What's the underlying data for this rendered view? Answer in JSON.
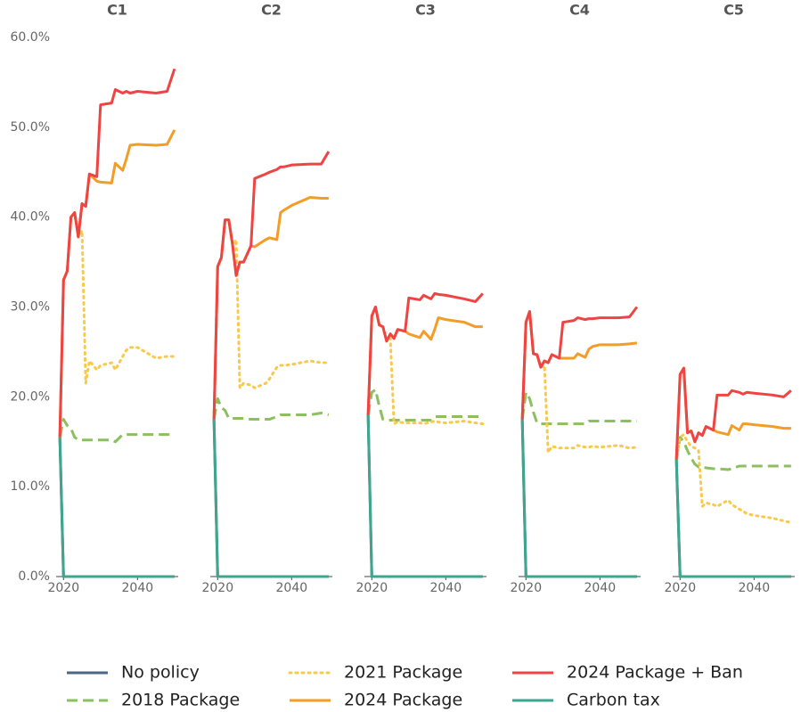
{
  "chart_data": [
    {
      "type": "line",
      "title": "C1",
      "xlim": [
        2018,
        2051
      ],
      "xticks": [
        2020,
        2040
      ],
      "ylim": [
        0,
        60
      ],
      "yticks": [
        {
          "value": 0,
          "label": "0.0%"
        },
        {
          "value": 10,
          "label": "10.0%"
        },
        {
          "value": 20,
          "label": "20.0%"
        },
        {
          "value": 30,
          "label": "30.0%"
        },
        {
          "value": 40,
          "label": "40.0%"
        },
        {
          "value": 50,
          "label": "50.0%"
        },
        {
          "value": 60,
          "label": "60.0%"
        }
      ],
      "x": [
        2019,
        2020,
        2021,
        2022,
        2023,
        2024,
        2025,
        2026,
        2027,
        2029,
        2030,
        2033,
        2034,
        2036,
        2037,
        2038,
        2040,
        2045,
        2048,
        2050
      ],
      "series": [
        {
          "name": "No policy",
          "color": "#4a6785",
          "style": "solid",
          "values": [
            15.5,
            0,
            0,
            0,
            0,
            0,
            0,
            0,
            0,
            0,
            0,
            0,
            0,
            0,
            0,
            0,
            0,
            0,
            0,
            0
          ]
        },
        {
          "name": "2018 Package",
          "color": "#8cbf5f",
          "style": "dashed",
          "values": [
            15.5,
            17.5,
            16.8,
            16.5,
            15.5,
            15.2,
            15.2,
            15.2,
            15.2,
            15.2,
            15.2,
            15.2,
            15.0,
            15.8,
            15.8,
            15.8,
            15.8,
            15.8,
            15.8,
            15.8
          ]
        },
        {
          "name": "2021 Package",
          "color": "#f8c94a",
          "style": "dotted",
          "values": [
            15.5,
            33,
            34,
            40,
            40.5,
            37.8,
            38.5,
            21.5,
            24,
            23,
            23.5,
            23.8,
            23,
            24.5,
            25.2,
            25.5,
            25.5,
            24.3,
            24.5,
            24.5
          ]
        },
        {
          "name": "2024 Package",
          "color": "#f39c26",
          "style": "solid",
          "values": [
            15.5,
            33,
            34,
            40,
            40.5,
            37.8,
            41.5,
            41.2,
            44.8,
            44,
            43.9,
            43.8,
            46,
            45.2,
            46.5,
            48,
            48.1,
            48,
            48.1,
            49.7
          ]
        },
        {
          "name": "2024 Package + Ban",
          "color": "#ef4444",
          "style": "solid",
          "values": [
            15.5,
            33,
            34,
            40,
            40.5,
            37.8,
            41.5,
            41.2,
            44.8,
            44.5,
            52.5,
            52.7,
            54.2,
            53.8,
            54,
            53.8,
            54,
            53.8,
            54,
            56.5
          ]
        },
        {
          "name": "Carbon tax",
          "color": "#3fa58c",
          "style": "solid",
          "values": [
            15.5,
            0,
            0,
            0,
            0,
            0,
            0,
            0,
            0,
            0,
            0,
            0,
            0,
            0,
            0,
            0,
            0,
            0,
            0,
            0
          ]
        }
      ]
    },
    {
      "type": "line",
      "title": "C2",
      "xlim": [
        2018,
        2051
      ],
      "xticks": [
        2020,
        2040
      ],
      "ylim": [
        0,
        60
      ],
      "x": [
        2019,
        2020,
        2021,
        2022,
        2023,
        2024,
        2025,
        2026,
        2027,
        2029,
        2030,
        2033,
        2034,
        2036,
        2037,
        2038,
        2040,
        2045,
        2048,
        2050
      ],
      "series": [
        {
          "name": "No policy",
          "color": "#4a6785",
          "style": "solid",
          "values": [
            17.5,
            0,
            0,
            0,
            0,
            0,
            0,
            0,
            0,
            0,
            0,
            0,
            0,
            0,
            0,
            0,
            0,
            0,
            0,
            0
          ]
        },
        {
          "name": "2018 Package",
          "color": "#8cbf5f",
          "style": "dashed",
          "values": [
            17.5,
            19.8,
            18.8,
            18.5,
            17.6,
            17.6,
            17.6,
            17.6,
            17.6,
            17.5,
            17.5,
            17.5,
            17.5,
            17.8,
            18,
            18,
            18,
            18,
            18.2,
            18
          ]
        },
        {
          "name": "2021 Package",
          "color": "#f8c94a",
          "style": "dotted",
          "values": [
            17.5,
            34.5,
            35.5,
            39.7,
            39.7,
            37,
            37.5,
            21,
            21.5,
            21.3,
            21,
            21.5,
            22,
            23.3,
            23.5,
            23.5,
            23.6,
            24,
            23.8,
            23.8
          ]
        },
        {
          "name": "2024 Package",
          "color": "#f39c26",
          "style": "solid",
          "values": [
            17.5,
            34.5,
            35.5,
            39.7,
            39.7,
            37,
            33.5,
            35,
            35,
            36.8,
            36.7,
            37.5,
            37.7,
            37.5,
            40.5,
            40.8,
            41.3,
            42.2,
            42.1,
            42.1
          ]
        },
        {
          "name": "2024 Package + Ban",
          "color": "#ef4444",
          "style": "solid",
          "values": [
            17.5,
            34.5,
            35.5,
            39.7,
            39.7,
            37,
            33.5,
            35,
            35,
            36.8,
            44.3,
            44.8,
            45,
            45.3,
            45.6,
            45.6,
            45.8,
            45.9,
            45.9,
            47.3
          ]
        },
        {
          "name": "Carbon tax",
          "color": "#3fa58c",
          "style": "solid",
          "values": [
            17.5,
            0,
            0,
            0,
            0,
            0,
            0,
            0,
            0,
            0,
            0,
            0,
            0,
            0,
            0,
            0,
            0,
            0,
            0,
            0
          ]
        }
      ]
    },
    {
      "type": "line",
      "title": "C3",
      "xlim": [
        2018,
        2051
      ],
      "xticks": [
        2020,
        2040
      ],
      "ylim": [
        0,
        60
      ],
      "x": [
        2019,
        2020,
        2021,
        2022,
        2023,
        2024,
        2025,
        2026,
        2027,
        2029,
        2030,
        2033,
        2034,
        2036,
        2037,
        2038,
        2040,
        2045,
        2048,
        2050
      ],
      "series": [
        {
          "name": "No policy",
          "color": "#4a6785",
          "style": "solid",
          "values": [
            18,
            0,
            0,
            0,
            0,
            0,
            0,
            0,
            0,
            0,
            0,
            0,
            0,
            0,
            0,
            0,
            0,
            0,
            0,
            0
          ]
        },
        {
          "name": "2018 Package",
          "color": "#8cbf5f",
          "style": "dashed",
          "values": [
            18,
            20.5,
            20.8,
            19,
            17.5,
            17.4,
            17.4,
            17.4,
            17.4,
            17.4,
            17.4,
            17.4,
            17.4,
            17.4,
            17.8,
            17.8,
            17.8,
            17.8,
            17.8,
            17.8
          ]
        },
        {
          "name": "2021 Package",
          "color": "#f8c94a",
          "style": "dotted",
          "values": [
            18,
            29,
            30,
            28,
            27.8,
            26.2,
            26.5,
            17,
            17.2,
            17.1,
            17.1,
            17.1,
            17,
            17.2,
            17.3,
            17.2,
            17.1,
            17.3,
            17.1,
            17
          ]
        },
        {
          "name": "2024 Package",
          "color": "#f39c26",
          "style": "solid",
          "values": [
            18,
            29,
            30,
            28,
            27.8,
            26.2,
            27,
            26.5,
            27.5,
            27.3,
            27,
            26.6,
            27.3,
            26.4,
            27.5,
            28.8,
            28.6,
            28.3,
            27.8,
            27.8
          ]
        },
        {
          "name": "2024 Package + Ban",
          "color": "#ef4444",
          "style": "solid",
          "values": [
            18,
            29,
            30,
            28,
            27.8,
            26.2,
            27,
            26.5,
            27.5,
            27.3,
            31,
            30.8,
            31.3,
            30.9,
            31.5,
            31.4,
            31.3,
            30.9,
            30.6,
            31.5
          ]
        },
        {
          "name": "Carbon tax",
          "color": "#3fa58c",
          "style": "solid",
          "values": [
            18,
            0,
            0,
            0,
            0,
            0,
            0,
            0,
            0,
            0,
            0,
            0,
            0,
            0,
            0,
            0,
            0,
            0,
            0,
            0
          ]
        }
      ]
    },
    {
      "type": "line",
      "title": "C4",
      "xlim": [
        2018,
        2051
      ],
      "xticks": [
        2020,
        2040
      ],
      "ylim": [
        0,
        60
      ],
      "x": [
        2019,
        2020,
        2021,
        2022,
        2023,
        2024,
        2025,
        2026,
        2027,
        2029,
        2030,
        2033,
        2034,
        2036,
        2037,
        2038,
        2040,
        2045,
        2048,
        2050
      ],
      "series": [
        {
          "name": "No policy",
          "color": "#4a6785",
          "style": "solid",
          "values": [
            17.5,
            0,
            0,
            0,
            0,
            0,
            0,
            0,
            0,
            0,
            0,
            0,
            0,
            0,
            0,
            0,
            0,
            0,
            0,
            0
          ]
        },
        {
          "name": "2018 Package",
          "color": "#8cbf5f",
          "style": "dashed",
          "values": [
            17.5,
            20.5,
            19.8,
            18.3,
            17.1,
            17,
            17,
            17,
            17,
            17,
            17,
            17,
            17,
            17,
            17.3,
            17.3,
            17.3,
            17.3,
            17.3,
            17.3
          ]
        },
        {
          "name": "2021 Package",
          "color": "#f8c94a",
          "style": "dotted",
          "values": [
            17.5,
            28.3,
            29.5,
            24.8,
            24.7,
            23.3,
            23.5,
            13.8,
            14.5,
            14.3,
            14.3,
            14.3,
            14.6,
            14.4,
            14.4,
            14.5,
            14.4,
            14.6,
            14.3,
            14.4
          ]
        },
        {
          "name": "2024 Package",
          "color": "#f39c26",
          "style": "solid",
          "values": [
            17.5,
            28.3,
            29.5,
            24.8,
            24.7,
            23.3,
            24,
            23.8,
            24.7,
            24.3,
            24.3,
            24.3,
            24.8,
            24.4,
            25.3,
            25.6,
            25.8,
            25.8,
            25.9,
            26
          ]
        },
        {
          "name": "2024 Package + Ban",
          "color": "#ef4444",
          "style": "solid",
          "values": [
            17.5,
            28.3,
            29.5,
            24.8,
            24.7,
            23.3,
            24,
            23.8,
            24.7,
            24.3,
            28.3,
            28.5,
            28.8,
            28.6,
            28.7,
            28.7,
            28.8,
            28.8,
            28.9,
            30
          ]
        },
        {
          "name": "Carbon tax",
          "color": "#3fa58c",
          "style": "solid",
          "values": [
            17.5,
            0,
            0,
            0,
            0,
            0,
            0,
            0,
            0,
            0,
            0,
            0,
            0,
            0,
            0,
            0,
            0,
            0,
            0,
            0
          ]
        }
      ]
    },
    {
      "type": "line",
      "title": "C5",
      "xlim": [
        2018,
        2051
      ],
      "xticks": [
        2020,
        2040
      ],
      "ylim": [
        0,
        60
      ],
      "x": [
        2019,
        2020,
        2021,
        2022,
        2023,
        2024,
        2025,
        2026,
        2027,
        2029,
        2030,
        2033,
        2034,
        2036,
        2037,
        2038,
        2040,
        2045,
        2048,
        2050
      ],
      "series": [
        {
          "name": "No policy",
          "color": "#4a6785",
          "style": "solid",
          "values": [
            13,
            0,
            0,
            0,
            0,
            0,
            0,
            0,
            0,
            0,
            0,
            0,
            0,
            0,
            0,
            0,
            0,
            0,
            0,
            0
          ]
        },
        {
          "name": "2018 Package",
          "color": "#8cbf5f",
          "style": "dashed",
          "values": [
            13,
            15.5,
            15,
            14,
            13.2,
            12.5,
            12.2,
            12.2,
            12.1,
            12,
            12,
            11.9,
            12,
            12.3,
            12.3,
            12.3,
            12.3,
            12.3,
            12.3,
            12.3
          ]
        },
        {
          "name": "2021 Package",
          "color": "#f8c94a",
          "style": "dotted",
          "values": [
            13,
            15.5,
            15.8,
            15,
            14.5,
            14.3,
            14,
            7.8,
            8.2,
            8,
            7.8,
            8.5,
            8,
            7.5,
            7.3,
            7,
            6.8,
            6.5,
            6.2,
            6
          ]
        },
        {
          "name": "2024 Package",
          "color": "#f39c26",
          "style": "solid",
          "values": [
            13,
            22.5,
            23.2,
            16,
            16.2,
            15,
            16,
            15.7,
            16.7,
            16.3,
            16.1,
            15.8,
            16.8,
            16.3,
            17,
            17,
            16.9,
            16.7,
            16.5,
            16.5
          ]
        },
        {
          "name": "2024 Package + Ban",
          "color": "#ef4444",
          "style": "solid",
          "values": [
            13,
            22.5,
            23.2,
            16,
            16.2,
            15,
            16,
            15.7,
            16.7,
            16.3,
            20.2,
            20.2,
            20.7,
            20.5,
            20.3,
            20.5,
            20.4,
            20.2,
            20,
            20.7
          ]
        },
        {
          "name": "Carbon tax",
          "color": "#3fa58c",
          "style": "solid",
          "values": [
            13,
            0,
            0,
            0,
            0,
            0,
            0,
            0,
            0,
            0,
            0,
            0,
            0,
            0,
            0,
            0,
            0,
            0,
            0,
            0
          ]
        }
      ]
    }
  ]
}
